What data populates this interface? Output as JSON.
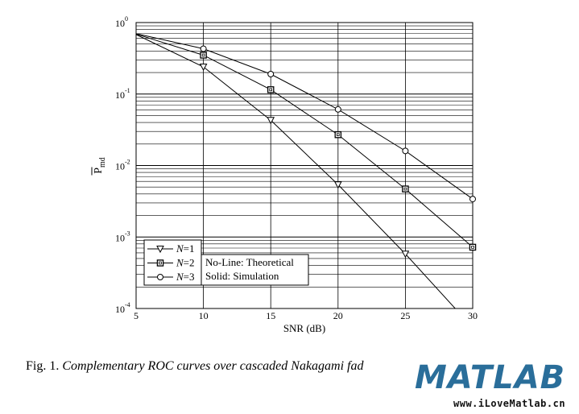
{
  "chart_data": {
    "type": "line",
    "xlabel": "SNR (dB)",
    "ylabel_main": "P",
    "ylabel_sub": "md",
    "x_ticks": [
      "5",
      "10",
      "15",
      "20",
      "25",
      "30"
    ],
    "y_ticks": [
      {
        "base": "10",
        "exp": "0"
      },
      {
        "base": "10",
        "exp": "-1"
      },
      {
        "base": "10",
        "exp": "-2"
      },
      {
        "base": "10",
        "exp": "-3"
      },
      {
        "base": "10",
        "exp": "-4"
      }
    ],
    "xlim": [
      5,
      30
    ],
    "ylim": [
      0.0001,
      1
    ],
    "y_scale": "log",
    "grid": true,
    "series": [
      {
        "name": "N=1",
        "marker": "triangle-down",
        "x": [
          5,
          10,
          15,
          20,
          25,
          28.7
        ],
        "y": [
          0.68,
          0.24,
          0.043,
          0.0054,
          0.00058,
          0.0001
        ]
      },
      {
        "name": "N=2",
        "marker": "square",
        "x": [
          5,
          10,
          15,
          20,
          25,
          30
        ],
        "y": [
          0.69,
          0.35,
          0.115,
          0.027,
          0.0047,
          0.00072
        ]
      },
      {
        "name": "N=3",
        "marker": "circle",
        "x": [
          5,
          10,
          15,
          20,
          25,
          30
        ],
        "y": [
          0.7,
          0.43,
          0.19,
          0.061,
          0.016,
          0.0034
        ]
      }
    ],
    "legend": {
      "placement": "bottom-left",
      "entries": [
        {
          "prefix": "N",
          "suffix": "=1"
        },
        {
          "prefix": "N",
          "suffix": "=2"
        },
        {
          "prefix": "N",
          "suffix": "=3"
        }
      ]
    },
    "annotations": [
      "No-Line: Theoretical",
      "Solid: Simulation"
    ]
  },
  "caption": {
    "lead": "Fig. 1. ",
    "text": "Complementary ROC curves over cascaded Nakagami fad"
  },
  "watermark": {
    "logo_text": "MATLAB",
    "url": "www.iLoveMatlab.cn",
    "colors": {
      "logo": "#2a6e9a",
      "url": "#111111"
    }
  }
}
